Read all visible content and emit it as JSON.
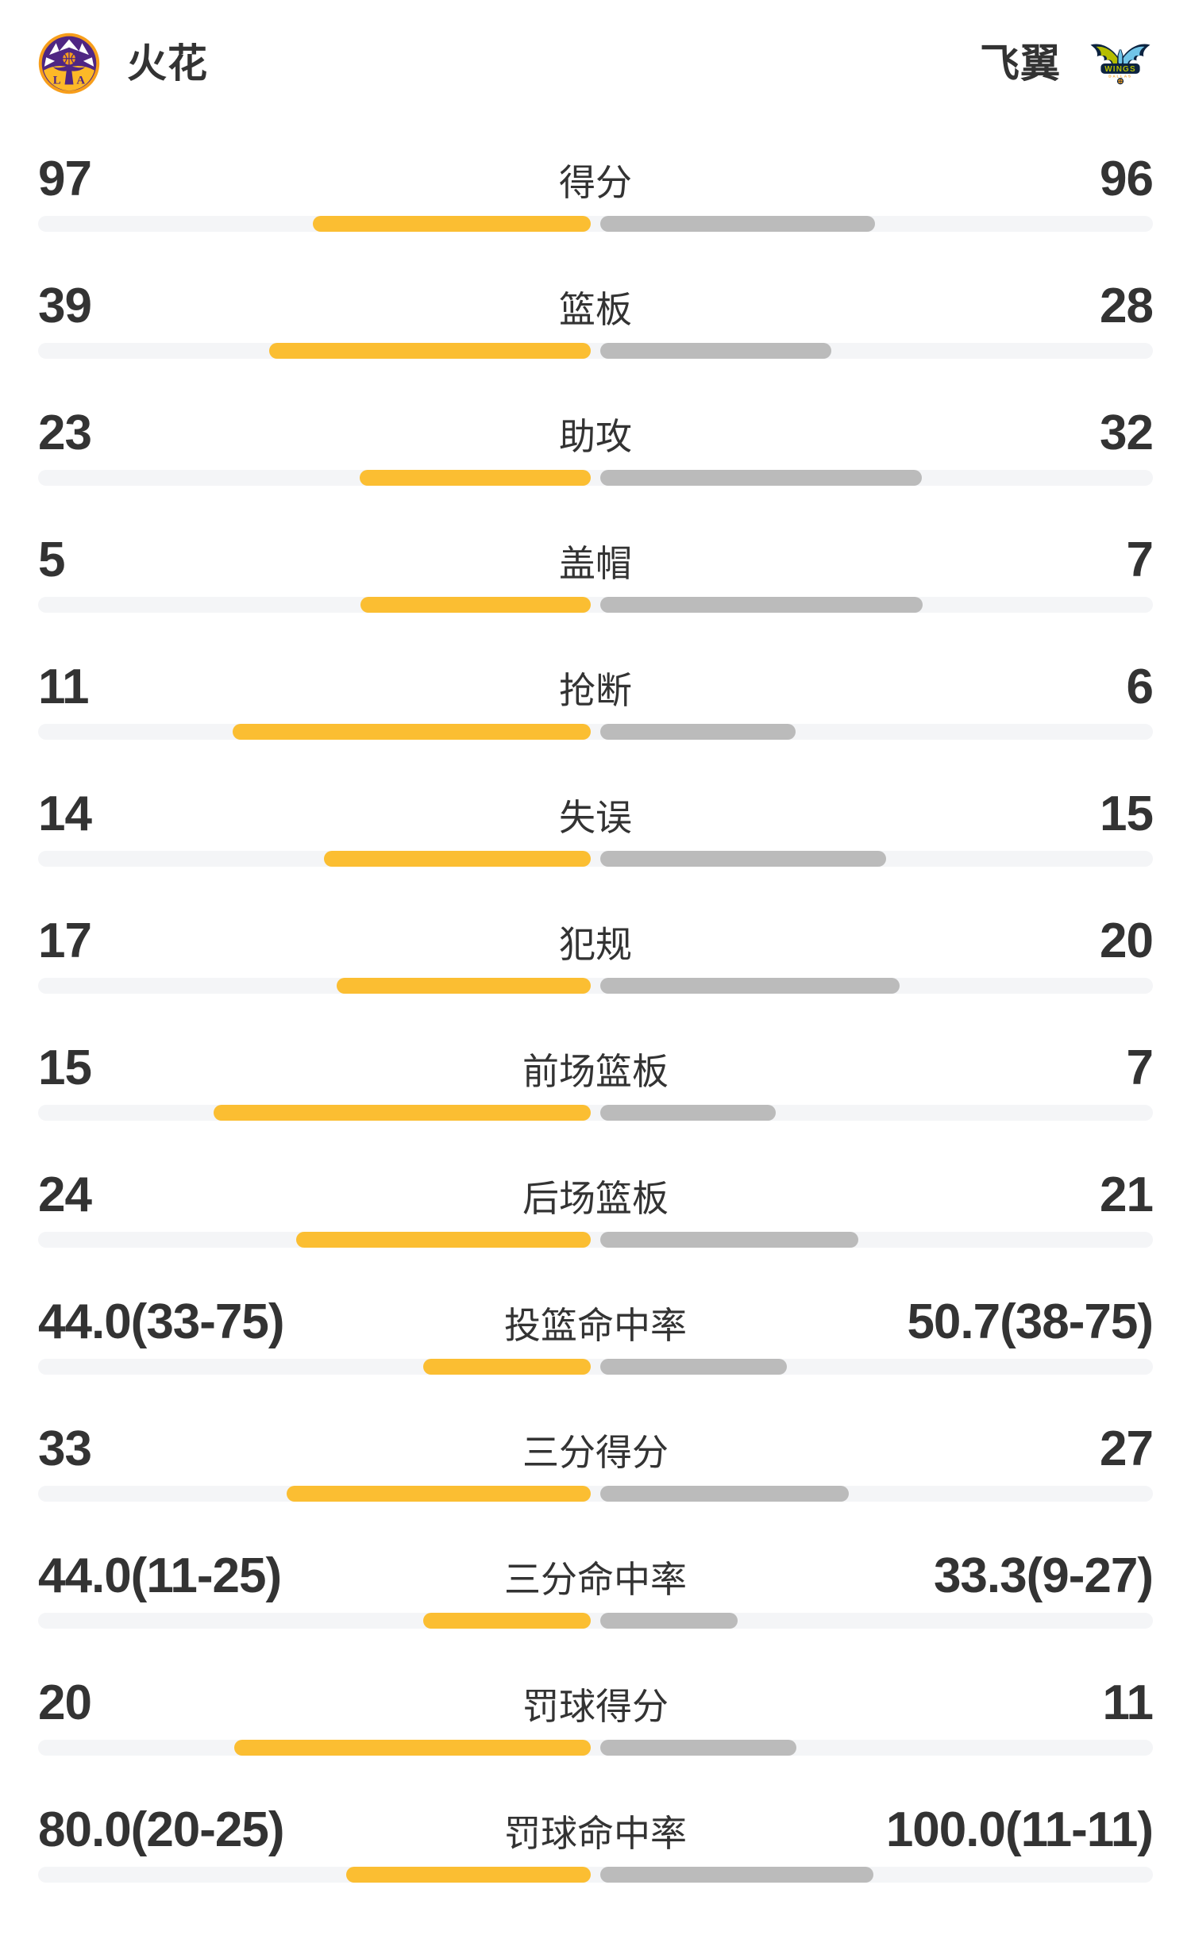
{
  "header": {
    "home": {
      "name": "火花",
      "logo": "la-sparks-logo"
    },
    "away": {
      "name": "飞翼",
      "logo": "dallas-wings-logo"
    }
  },
  "colors": {
    "home_bar": "#FBBE32",
    "away_bar": "#BBBBBB",
    "track": "#F4F5F7",
    "text": "#333333"
  },
  "chart_data": {
    "type": "bar",
    "orientation": "horizontal-paired-from-center",
    "legend": [
      "火花",
      "飞翼"
    ],
    "legend_position": "top",
    "grid": false,
    "bar_note": "home_bar/away_bar are bar lengths as fraction of the half-track from center",
    "rows": [
      {
        "label": "得分",
        "home": "97",
        "away": "96",
        "home_num": 97,
        "away_num": 96,
        "home_bar": 0.503,
        "away_bar": 0.497
      },
      {
        "label": "篮板",
        "home": "39",
        "away": "28",
        "home_num": 39,
        "away_num": 28,
        "home_bar": 0.582,
        "away_bar": 0.418
      },
      {
        "label": "助攻",
        "home": "23",
        "away": "32",
        "home_num": 23,
        "away_num": 32,
        "home_bar": 0.418,
        "away_bar": 0.582
      },
      {
        "label": "盖帽",
        "home": "5",
        "away": "7",
        "home_num": 5,
        "away_num": 7,
        "home_bar": 0.417,
        "away_bar": 0.583
      },
      {
        "label": "抢断",
        "home": "11",
        "away": "6",
        "home_num": 11,
        "away_num": 6,
        "home_bar": 0.647,
        "away_bar": 0.353
      },
      {
        "label": "失误",
        "home": "14",
        "away": "15",
        "home_num": 14,
        "away_num": 15,
        "home_bar": 0.483,
        "away_bar": 0.517
      },
      {
        "label": "犯规",
        "home": "17",
        "away": "20",
        "home_num": 17,
        "away_num": 20,
        "home_bar": 0.459,
        "away_bar": 0.541
      },
      {
        "label": "前场篮板",
        "home": "15",
        "away": "7",
        "home_num": 15,
        "away_num": 7,
        "home_bar": 0.682,
        "away_bar": 0.318
      },
      {
        "label": "后场篮板",
        "home": "24",
        "away": "21",
        "home_num": 24,
        "away_num": 21,
        "home_bar": 0.533,
        "away_bar": 0.467
      },
      {
        "label": "投篮命中率",
        "home": "44.0(33-75)",
        "away": "50.7(38-75)",
        "home_num": 44.0,
        "away_num": 50.7,
        "home_bar": 0.303,
        "away_bar": 0.337
      },
      {
        "label": "三分得分",
        "home": "33",
        "away": "27",
        "home_num": 33,
        "away_num": 27,
        "home_bar": 0.55,
        "away_bar": 0.45
      },
      {
        "label": "三分命中率",
        "home": "44.0(11-25)",
        "away": "33.3(9-27)",
        "home_num": 44.0,
        "away_num": 33.3,
        "home_bar": 0.303,
        "away_bar": 0.249
      },
      {
        "label": "罚球得分",
        "home": "20",
        "away": "11",
        "home_num": 20,
        "away_num": 11,
        "home_bar": 0.645,
        "away_bar": 0.355
      },
      {
        "label": "罚球命中率",
        "home": "80.0(20-25)",
        "away": "100.0(11-11)",
        "home_num": 80.0,
        "away_num": 100.0,
        "home_bar": 0.443,
        "away_bar": 0.494
      }
    ]
  }
}
